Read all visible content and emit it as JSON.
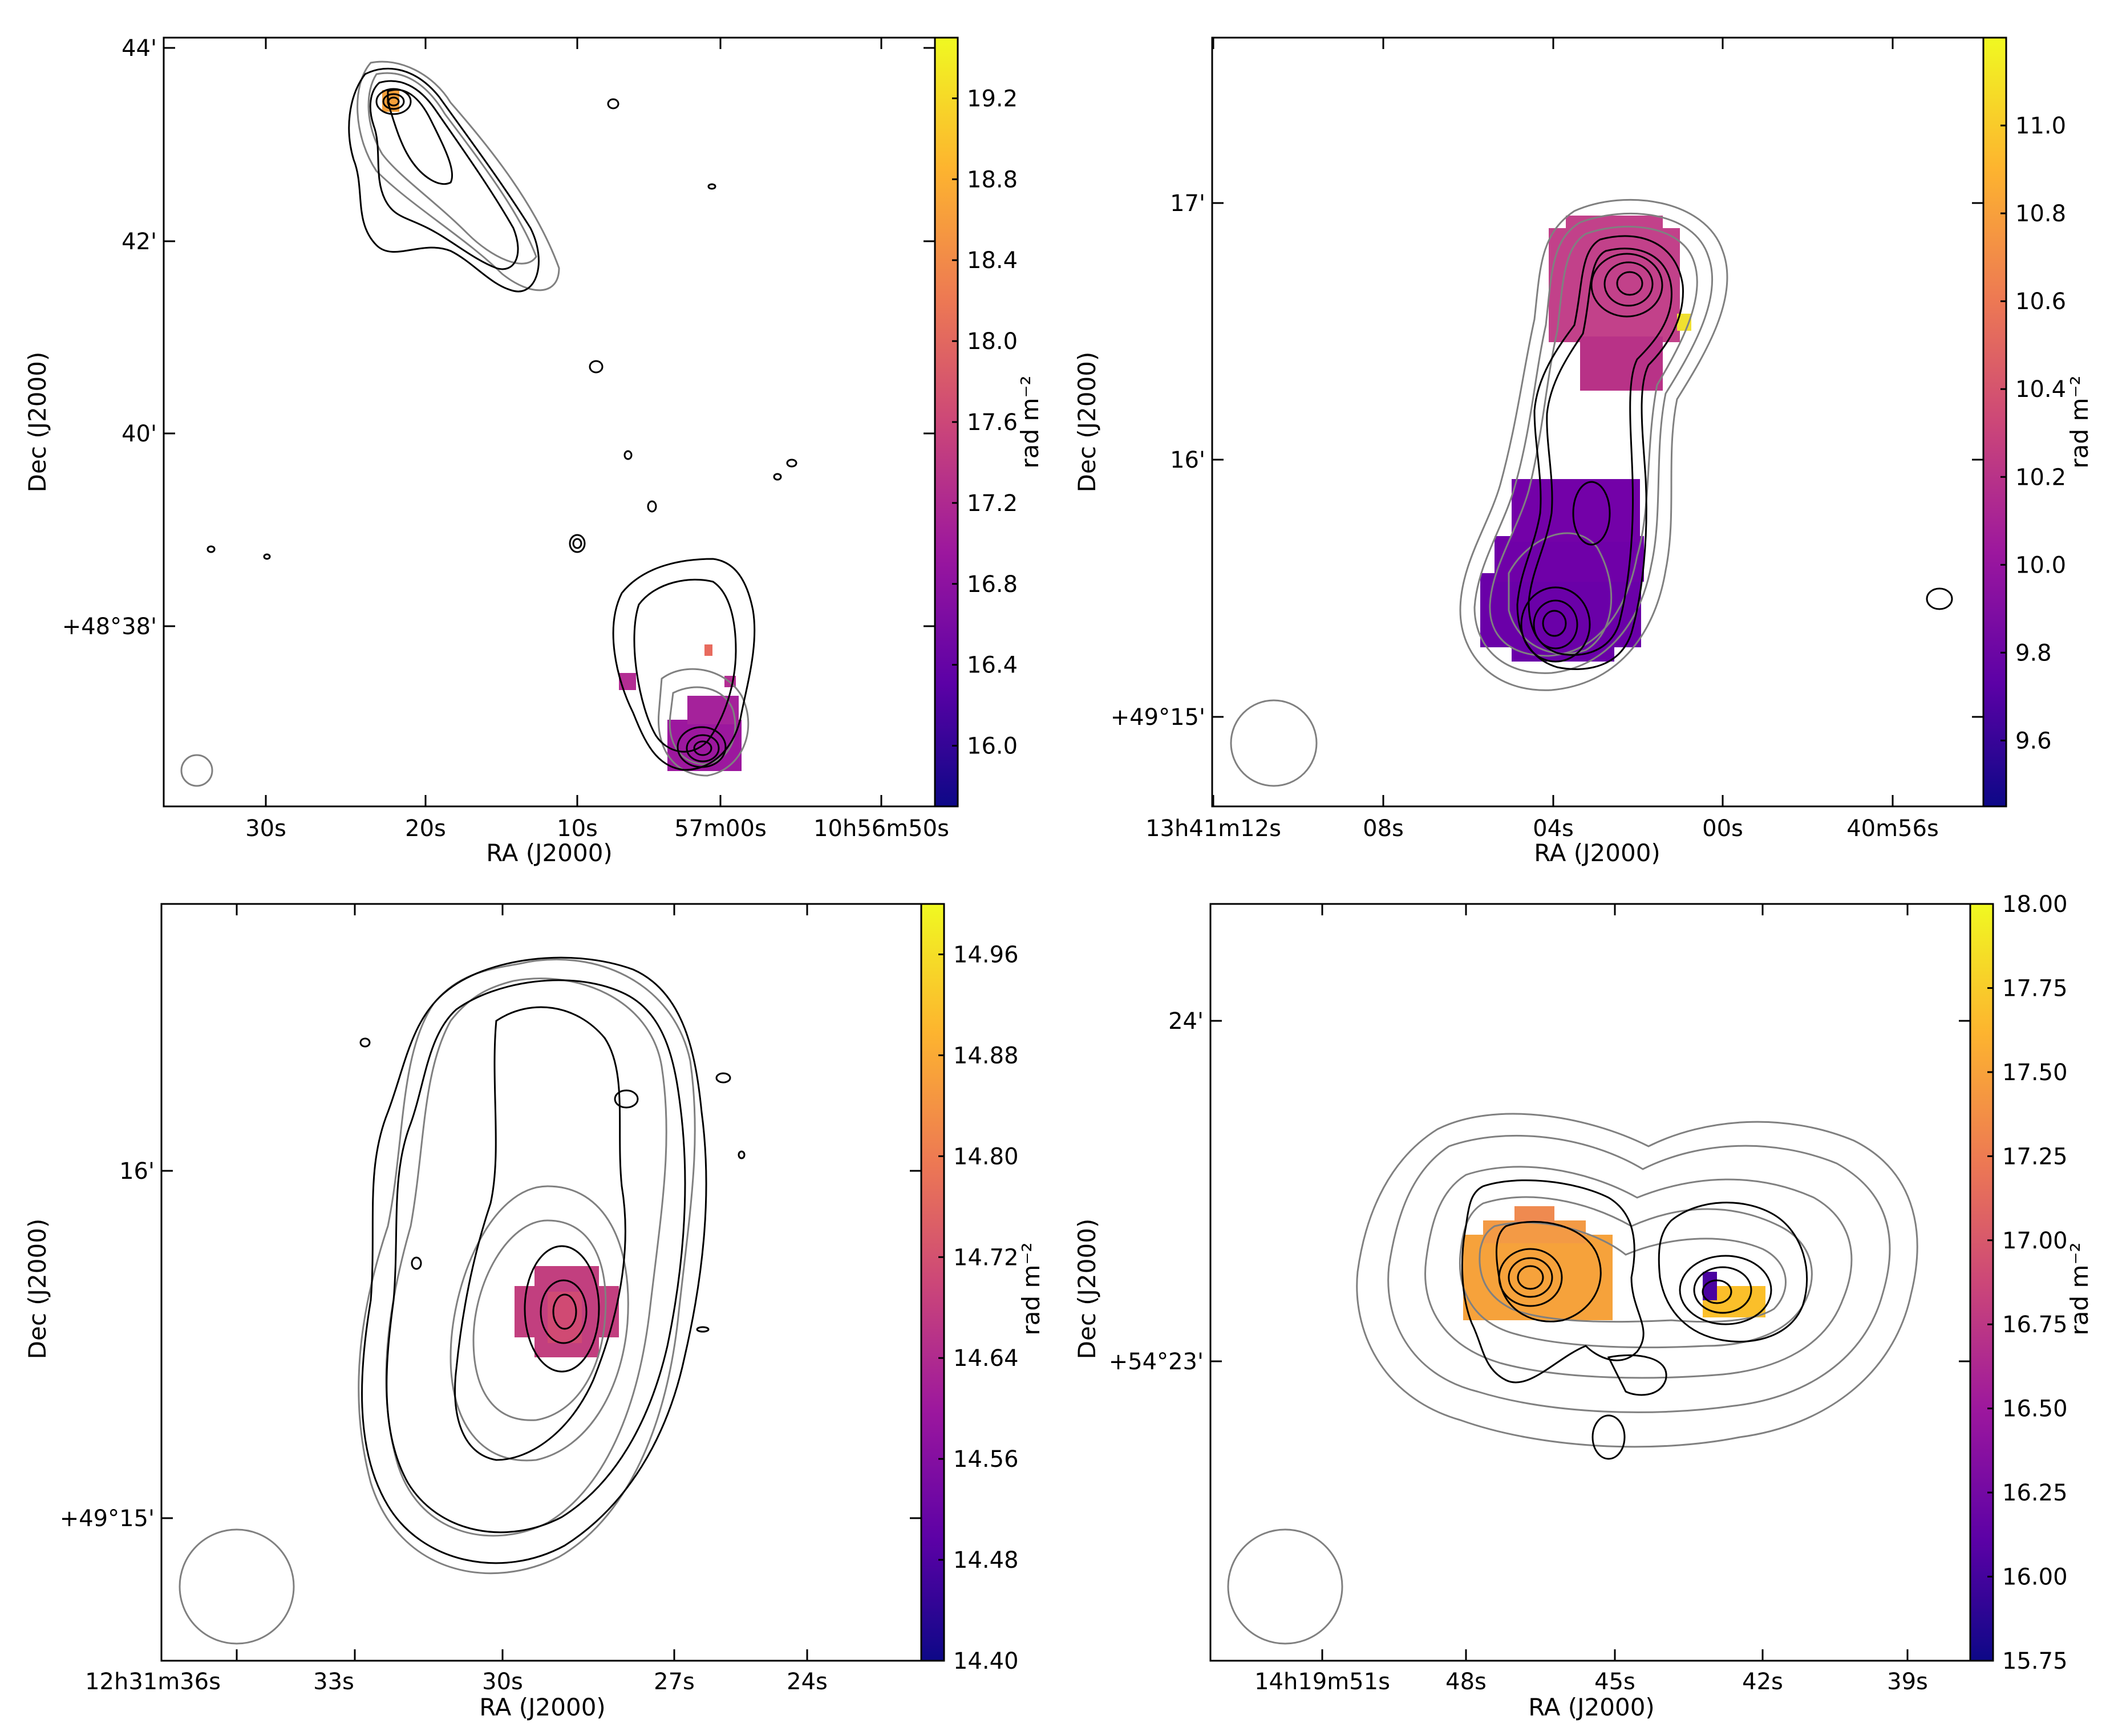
{
  "figure": {
    "palette": [
      "#0d0887",
      "#5c01a6",
      "#9c179e",
      "#cc4778",
      "#ed7953",
      "#fdb42f",
      "#f0f921"
    ],
    "contour_black": "#000000",
    "contour_gray": "#808080"
  },
  "chart_data": [
    {
      "type": "rm_map",
      "xlabel": "RA (J2000)",
      "ylabel": "Dec (J2000)",
      "x_ticks": [
        "30s",
        "20s",
        "10s",
        "57m00s",
        "10h56m50s"
      ],
      "y_ticks": [
        "44'",
        "42'",
        "40'",
        "+48°38'"
      ],
      "colorbar": {
        "label": "rad m⁻²",
        "vmin": 15.7,
        "vmax": 19.5,
        "ticks": [
          16.0,
          16.4,
          16.8,
          17.2,
          17.6,
          18.0,
          18.4,
          18.8,
          19.2
        ]
      },
      "rm_values_approx": [
        16.8,
        16.9,
        17.2,
        18.8
      ]
    },
    {
      "type": "rm_map",
      "xlabel": "RA (J2000)",
      "ylabel": "Dec (J2000)",
      "x_ticks": [
        "13h41m12s",
        "08s",
        "04s",
        "00s",
        "40m56s"
      ],
      "y_ticks": [
        "17'",
        "16'",
        "+49°15'"
      ],
      "colorbar": {
        "label": "rad m⁻²",
        "vmin": 9.45,
        "vmax": 11.2,
        "ticks": [
          9.6,
          9.8,
          10.0,
          10.2,
          10.4,
          10.6,
          10.8,
          11.0
        ]
      },
      "rm_values_approx": [
        9.75,
        10.25,
        10.4,
        11.1
      ]
    },
    {
      "type": "rm_map",
      "xlabel": "RA (J2000)",
      "ylabel": "Dec (J2000)",
      "x_ticks": [
        "12h31m36s",
        "33s",
        "30s",
        "27s",
        "24s"
      ],
      "y_ticks": [
        "16'",
        "+49°15'"
      ],
      "colorbar": {
        "label": "rad m⁻²",
        "vmin": 14.4,
        "vmax": 15.0,
        "ticks": [
          14.4,
          14.48,
          14.56,
          14.64,
          14.72,
          14.8,
          14.88,
          14.96
        ]
      },
      "rm_values_approx": [
        14.68,
        14.72
      ]
    },
    {
      "type": "rm_map",
      "xlabel": "RA (J2000)",
      "ylabel": "Dec (J2000)",
      "x_ticks": [
        "14h19m51s",
        "48s",
        "45s",
        "42s",
        "39s"
      ],
      "y_ticks": [
        "24'",
        "+54°23'"
      ],
      "colorbar": {
        "label": "rad m⁻²",
        "vmin": 15.75,
        "vmax": 18.0,
        "ticks": [
          15.75,
          16.0,
          16.25,
          16.5,
          16.75,
          17.0,
          17.25,
          17.5,
          17.75,
          18.0
        ]
      },
      "rm_values_approx": [
        16.2,
        17.5,
        17.6,
        17.8
      ]
    }
  ]
}
